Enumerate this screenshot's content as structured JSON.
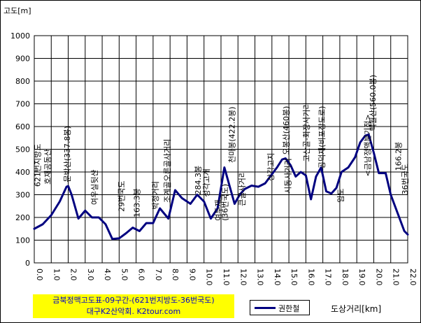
{
  "chart_data": {
    "type": "line",
    "title": "금북정맥고도표-09구간-(621번지방도-36번국도)",
    "subtitle": "대구K2산악회. K2tour.com",
    "ylabel": "고도[m]",
    "xlabel": "도상거리[km]",
    "ylim": [
      0,
      1000
    ],
    "yticks": [
      0,
      100,
      200,
      300,
      400,
      500,
      600,
      700,
      800,
      900,
      1000
    ],
    "xlim": [
      0,
      22
    ],
    "xticks": [
      "0.0",
      "1.0",
      "2.0",
      "3.0",
      "4.0",
      "5.0",
      "6.0",
      "7.0",
      "8.0",
      "9.0",
      "10.0",
      "11.0",
      "12.0",
      "13.0",
      "14.0",
      "15.0",
      "16.0",
      "17.0",
      "18.0",
      "19.0",
      "20.0",
      "21.0",
      "22.0"
    ],
    "grid": true,
    "legend_position": "bottom",
    "series": [
      {
        "name": "권한철",
        "color": "#000080",
        "x": [
          0.0,
          0.5,
          1.0,
          1.5,
          1.9,
          2.0,
          2.2,
          2.6,
          3.0,
          3.4,
          3.8,
          4.2,
          4.6,
          5.0,
          5.4,
          5.8,
          6.2,
          6.6,
          7.0,
          7.4,
          7.9,
          8.3,
          8.7,
          9.2,
          9.6,
          10.0,
          10.4,
          10.8,
          11.2,
          11.5,
          11.8,
          12.1,
          12.4,
          12.8,
          13.2,
          13.6,
          14.0,
          14.3,
          14.6,
          14.8,
          15.1,
          15.4,
          15.7,
          16.0,
          16.3,
          16.6,
          16.9,
          17.2,
          17.5,
          17.8,
          18.1,
          18.5,
          18.9,
          19.2,
          19.5,
          19.7,
          20.0,
          20.3,
          20.7,
          21.0,
          21.4,
          21.8,
          22.0
        ],
        "y": [
          150,
          170,
          210,
          270,
          335,
          338,
          300,
          195,
          230,
          200,
          200,
          170,
          105,
          108,
          130,
          155,
          140,
          175,
          175,
          240,
          195,
          320,
          285,
          260,
          300,
          270,
          195,
          240,
          420,
          340,
          260,
          300,
          325,
          340,
          335,
          350,
          390,
          420,
          455,
          460,
          430,
          380,
          400,
          385,
          280,
          380,
          420,
          315,
          305,
          330,
          400,
          420,
          465,
          530,
          560,
          565,
          485,
          395,
          395,
          300,
          220,
          140,
          125
        ]
      }
    ],
    "annotations": [
      {
        "x": 0.35,
        "y": 335,
        "text": "621번지방도"
      },
      {
        "x": 0.95,
        "y": 345,
        "text": "호재공동산"
      },
      {
        "x": 2.1,
        "y": 355,
        "text": "문박산(337.8봉)"
      },
      {
        "x": 3.7,
        "y": 255,
        "text": "여우실뒷산"
      },
      {
        "x": 5.3,
        "y": 225,
        "text": "29번국도"
      },
      {
        "x": 6.2,
        "y": 200,
        "text": "163.3봉"
      },
      {
        "x": 7.3,
        "y": 235,
        "text": "박정거리"
      },
      {
        "x": 8.0,
        "y": 265,
        "text": "조계골오른골사거리"
      },
      {
        "x": 9.8,
        "y": 300,
        "text": "284.3봉"
      },
      {
        "x": 10.3,
        "y": 290,
        "text": "성각고개"
      },
      {
        "x": 11.8,
        "y": 440,
        "text": "천마봉(422.2봉)"
      },
      {
        "x": 14.1,
        "y": 360,
        "text": "상각고지"
      },
      {
        "x": 15.0,
        "y": 475,
        "text": "오봉산(460봉)"
      },
      {
        "x": 16.2,
        "y": 445,
        "text": "고산골-화장사거리"
      },
      {
        "x": 17.1,
        "y": 415,
        "text": "공덕재(비포장도로)"
      },
      {
        "x": 20.1,
        "y": 580,
        "text": "백월산(560.0봉)"
      },
      {
        "x": 21.6,
        "y": 405,
        "text": "166.2봉"
      },
      {
        "x": 11.0,
        "y": 185,
        "text": "여두재"
      },
      {
        "x": 11.4,
        "y": 185,
        "text": "(36번국도)"
      },
      {
        "x": 12.4,
        "y": 250,
        "text": "큰골사거리"
      },
      {
        "x": 15.1,
        "y": 305,
        "text": "시동사거리"
      },
      {
        "x": 18.2,
        "y": 265,
        "text": "임도"
      },
      {
        "x": 19.8,
        "y": 380,
        "text": "<금남정맥분기점>"
      },
      {
        "x": 22.0,
        "y": 300,
        "text": "36번국도"
      }
    ]
  }
}
